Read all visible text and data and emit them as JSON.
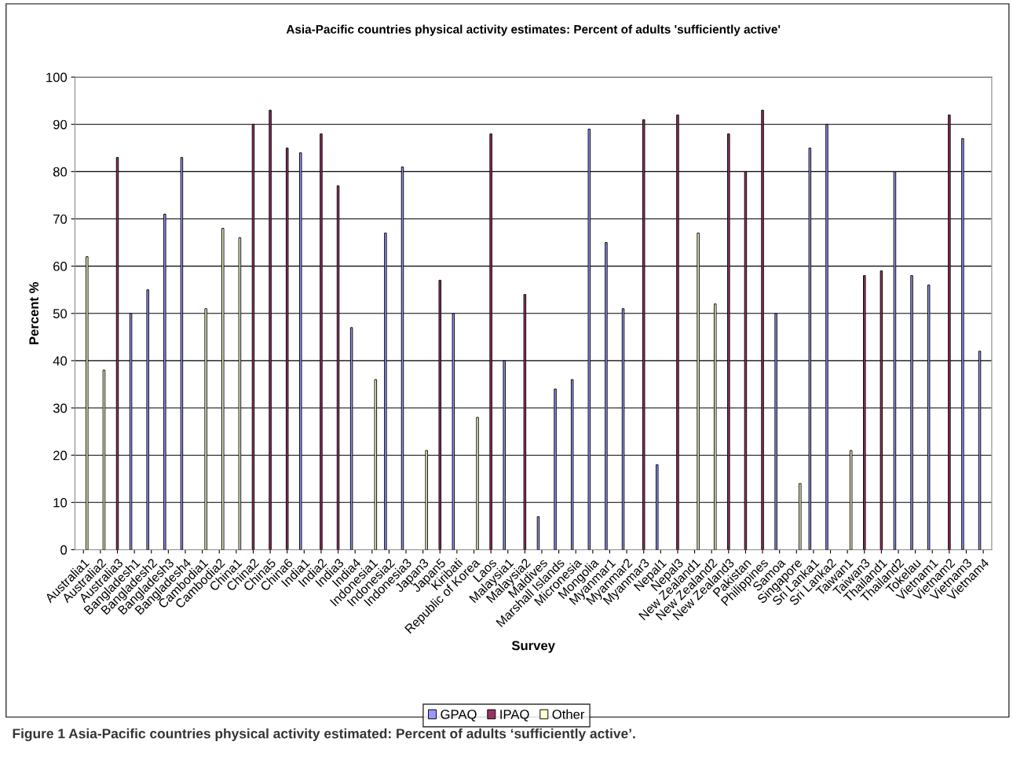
{
  "chart_data": {
    "type": "bar",
    "title": "Asia-Pacific countries physical activity estimates: Percent of adults 'sufficiently active'",
    "xlabel": "Survey",
    "ylabel": "Percent %",
    "categories": [
      "Australia1",
      "Australia2",
      "Australia3",
      "Bangladesh1",
      "Bangladesh2",
      "Bangladesh3",
      "Bangladesh4",
      "Cambodia1",
      "Cambodia2",
      "China1",
      "China2",
      "China5",
      "China6",
      "India1",
      "India2",
      "India3",
      "India4",
      "Indonesia1",
      "Indonesia2",
      "Indonesia3",
      "Japan3",
      "Japan5",
      "Kiribati",
      "Republic of Korea",
      "Laos",
      "Malaysia1",
      "Malaysia2",
      "Maldives",
      "Marshall Islands",
      "Micronesia",
      "Mongolia",
      "Myanmar1",
      "Myanmar2",
      "Myanmar3",
      "Nepal1",
      "Nepal3",
      "New Zealand1",
      "New Zealand2",
      "New Zealand3",
      "Pakistan",
      "Philippines",
      "Samoa",
      "Singapore",
      "Sri Lanka1",
      "Sri Lanka2",
      "Taiwan1",
      "Taiwan3",
      "Thailand1",
      "Thailand2",
      "Tokelau",
      "Vietnam1",
      "Vietnam2",
      "Vietnam3",
      "Vietnam4"
    ],
    "series": [
      {
        "name": "GPAQ",
        "color": "#9999ff",
        "values": [
          null,
          null,
          null,
          50,
          55,
          71,
          83,
          null,
          null,
          null,
          null,
          null,
          null,
          84,
          null,
          null,
          47,
          null,
          67,
          81,
          null,
          null,
          50,
          null,
          null,
          40,
          null,
          7,
          34,
          36,
          89,
          65,
          51,
          null,
          18,
          null,
          null,
          null,
          null,
          null,
          null,
          50,
          null,
          85,
          90,
          null,
          null,
          null,
          80,
          58,
          56,
          null,
          87,
          42
        ]
      },
      {
        "name": "IPAQ",
        "color": "#993366",
        "values": [
          null,
          null,
          83,
          null,
          null,
          null,
          null,
          null,
          null,
          null,
          90,
          93,
          85,
          null,
          88,
          77,
          null,
          null,
          null,
          null,
          null,
          57,
          null,
          null,
          88,
          null,
          54,
          null,
          null,
          null,
          null,
          null,
          null,
          91,
          null,
          92,
          null,
          null,
          88,
          80,
          93,
          null,
          null,
          null,
          null,
          null,
          58,
          59,
          null,
          null,
          null,
          92,
          null,
          null
        ]
      },
      {
        "name": "Other",
        "color": "#ffffcc",
        "values": [
          62,
          38,
          null,
          null,
          null,
          null,
          null,
          51,
          68,
          66,
          null,
          null,
          null,
          null,
          null,
          null,
          null,
          36,
          null,
          null,
          21,
          null,
          null,
          28,
          null,
          null,
          null,
          null,
          null,
          null,
          null,
          null,
          null,
          null,
          null,
          null,
          67,
          52,
          null,
          null,
          null,
          null,
          14,
          null,
          null,
          21,
          null,
          null,
          null,
          null,
          null,
          null,
          null,
          null
        ]
      }
    ],
    "ylim": [
      0,
      100
    ],
    "yticks": [
      0,
      10,
      20,
      30,
      40,
      50,
      60,
      70,
      80,
      90,
      100
    ],
    "grid": "y",
    "legend": "bottom",
    "annotations": [
      "Figure 1 Asia-Pacific countries physical activity estimated: Percent of adults ‘sufficiently active’."
    ]
  }
}
